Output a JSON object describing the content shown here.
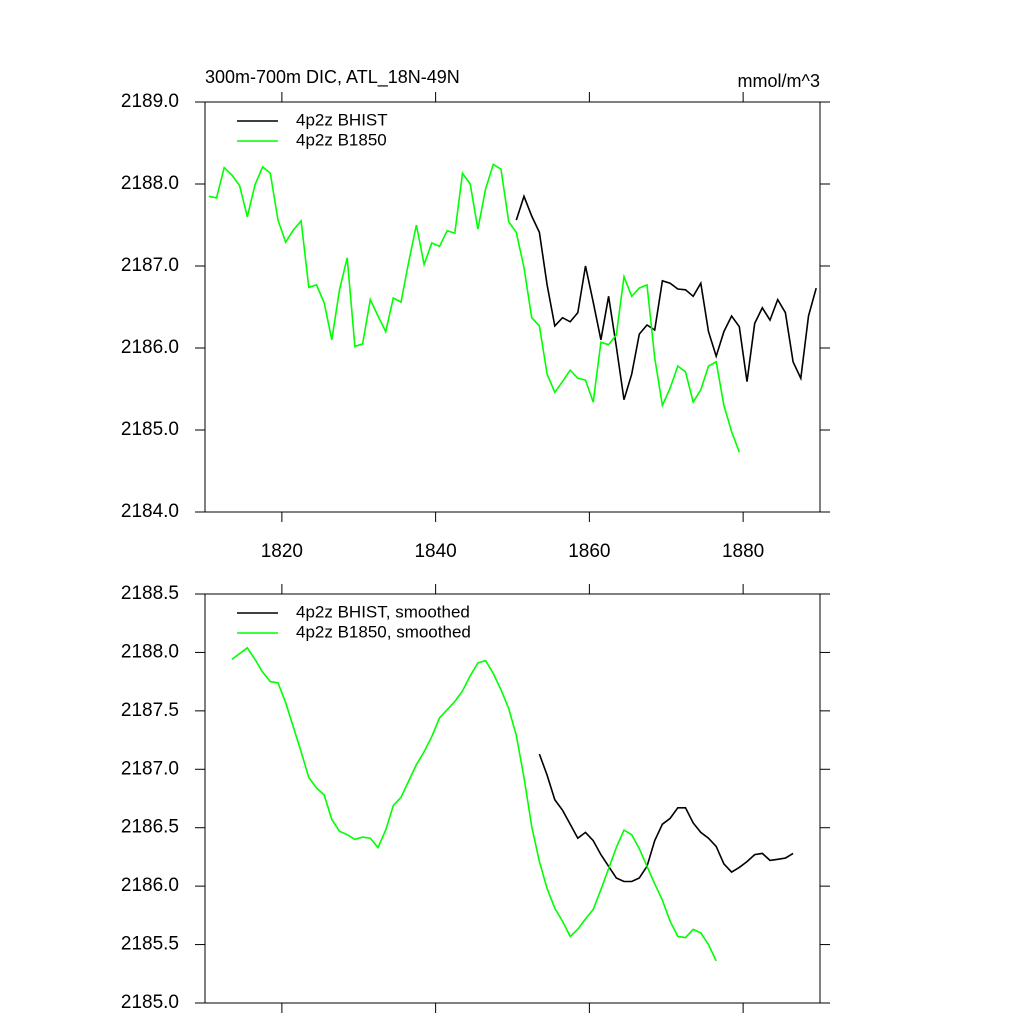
{
  "chart_data": [
    {
      "type": "line",
      "title": "300m-700m DIC, ATL_18N-49N",
      "units_label": "mmol/m^3",
      "xlim": [
        1810,
        1890
      ],
      "xticks": [
        1820,
        1840,
        1860,
        1880
      ],
      "xtick_labels": true,
      "ylim": [
        2184,
        2189
      ],
      "yticks": [
        {
          "value": 2184,
          "label": "2184.0"
        },
        {
          "value": 2185,
          "label": "2185.0"
        },
        {
          "value": 2186,
          "label": "2186.0"
        },
        {
          "value": 2187,
          "label": "2187.0"
        },
        {
          "value": 2188,
          "label": "2188.0"
        },
        {
          "value": 2189,
          "label": "2189.0"
        }
      ],
      "legend": "upper left",
      "series": [
        {
          "name": "4p2z BHIST",
          "color": "#000000",
          "x": [
            1850.5,
            1851.5,
            1852.5,
            1853.5,
            1854.5,
            1855.5,
            1856.5,
            1857.5,
            1858.5,
            1859.5,
            1860.5,
            1861.5,
            1862.5,
            1863.5,
            1864.5,
            1865.5,
            1866.5,
            1867.5,
            1868.5,
            1869.5,
            1870.5,
            1871.5,
            1872.5,
            1873.5,
            1874.5,
            1875.5,
            1876.5,
            1877.5,
            1878.5,
            1879.5,
            1880.5,
            1881.5,
            1882.5,
            1883.5,
            1884.5,
            1885.5,
            1886.5,
            1887.5,
            1888.5,
            1889.5
          ],
          "values": [
            2187.56,
            2187.85,
            2187.61,
            2187.41,
            2186.77,
            2186.27,
            2186.37,
            2186.32,
            2186.43,
            2187.0,
            2186.56,
            2186.1,
            2186.63,
            2186.02,
            2185.37,
            2185.68,
            2186.17,
            2186.28,
            2186.22,
            2186.82,
            2186.79,
            2186.72,
            2186.71,
            2186.63,
            2186.79,
            2186.2,
            2185.9,
            2186.2,
            2186.39,
            2186.26,
            2185.59,
            2186.3,
            2186.49,
            2186.34,
            2186.59,
            2186.43,
            2185.83,
            2185.63,
            2186.39,
            2186.73
          ]
        },
        {
          "name": "4p2z B1850",
          "color": "#00ff00",
          "x": [
            1810.5,
            1811.5,
            1812.5,
            1813.5,
            1814.5,
            1815.5,
            1816.5,
            1817.5,
            1818.5,
            1819.5,
            1820.5,
            1821.5,
            1822.5,
            1823.5,
            1824.5,
            1825.5,
            1826.5,
            1827.5,
            1828.5,
            1829.5,
            1830.5,
            1831.5,
            1832.5,
            1833.5,
            1834.5,
            1835.5,
            1836.5,
            1837.5,
            1838.5,
            1839.5,
            1840.5,
            1841.5,
            1842.5,
            1843.5,
            1844.5,
            1845.5,
            1846.5,
            1847.5,
            1848.5,
            1849.5,
            1850.5,
            1851.5,
            1852.5,
            1853.5,
            1854.5,
            1855.5,
            1856.5,
            1857.5,
            1858.5,
            1859.5,
            1860.5,
            1861.5,
            1862.5,
            1863.5,
            1864.5,
            1865.5,
            1866.5,
            1867.5,
            1868.5,
            1869.5,
            1870.5,
            1871.5,
            1872.5,
            1873.5,
            1874.5,
            1875.5,
            1876.5,
            1877.5,
            1878.5,
            1879.5
          ],
          "values": [
            2187.85,
            2187.83,
            2188.2,
            2188.11,
            2187.98,
            2187.6,
            2187.99,
            2188.21,
            2188.13,
            2187.56,
            2187.29,
            2187.44,
            2187.55,
            2186.74,
            2186.77,
            2186.55,
            2186.1,
            2186.71,
            2187.1,
            2186.02,
            2186.05,
            2186.59,
            2186.39,
            2186.2,
            2186.61,
            2186.56,
            2187.05,
            2187.5,
            2187.02,
            2187.28,
            2187.24,
            2187.43,
            2187.4,
            2188.13,
            2188.0,
            2187.45,
            2187.94,
            2188.24,
            2188.18,
            2187.54,
            2187.41,
            2186.98,
            2186.37,
            2186.27,
            2185.68,
            2185.46,
            2185.59,
            2185.73,
            2185.63,
            2185.61,
            2185.34,
            2186.07,
            2186.04,
            2186.16,
            2186.87,
            2186.63,
            2186.73,
            2186.77,
            2185.88,
            2185.3,
            2185.51,
            2185.78,
            2185.71,
            2185.34,
            2185.49,
            2185.78,
            2185.83,
            2185.3,
            2184.98,
            2184.73
          ]
        }
      ]
    },
    {
      "type": "line",
      "xlim": [
        1810,
        1890
      ],
      "xticks": [
        1820,
        1840,
        1860,
        1880
      ],
      "xtick_labels": false,
      "ylim": [
        2185,
        2188.5
      ],
      "yticks": [
        {
          "value": 2185,
          "label": "2185.0"
        },
        2185.5,
        {
          "value": 2186,
          "label": "2186.0"
        },
        2186.5,
        {
          "value": 2187,
          "label": "2187.0"
        },
        2187.5,
        {
          "value": 2188,
          "label": "2188.0"
        },
        2188.5
      ],
      "legend": "upper left",
      "series": [
        {
          "name": "4p2z BHIST, smoothed",
          "color": "#000000",
          "x": [
            1853.5,
            1854.5,
            1855.5,
            1856.5,
            1857.5,
            1858.5,
            1859.5,
            1860.5,
            1861.5,
            1862.5,
            1863.5,
            1864.5,
            1865.5,
            1866.5,
            1867.5,
            1868.5,
            1869.5,
            1870.5,
            1871.5,
            1872.5,
            1873.5,
            1874.5,
            1875.5,
            1876.5,
            1877.5,
            1878.5,
            1879.5,
            1880.5,
            1881.5,
            1882.5,
            1883.5,
            1884.5,
            1885.5,
            1886.5
          ],
          "values": [
            2187.13,
            2186.95,
            2186.74,
            2186.65,
            2186.53,
            2186.41,
            2186.46,
            2186.39,
            2186.27,
            2186.17,
            2186.07,
            2186.04,
            2186.04,
            2186.07,
            2186.17,
            2186.39,
            2186.53,
            2186.58,
            2186.67,
            2186.67,
            2186.54,
            2186.46,
            2186.41,
            2186.34,
            2186.19,
            2186.12,
            2186.16,
            2186.21,
            2186.27,
            2186.28,
            2186.22,
            2186.23,
            2186.24,
            2186.28
          ]
        },
        {
          "name": "4p2z B1850, smoothed",
          "color": "#00ff00",
          "x": [
            1813.5,
            1814.5,
            1815.5,
            1816.5,
            1817.5,
            1818.5,
            1819.5,
            1820.5,
            1821.5,
            1822.5,
            1823.5,
            1824.5,
            1825.5,
            1826.5,
            1827.5,
            1828.5,
            1829.5,
            1830.5,
            1831.5,
            1832.5,
            1833.5,
            1834.5,
            1835.5,
            1836.5,
            1837.5,
            1838.5,
            1839.5,
            1840.5,
            1841.5,
            1842.5,
            1843.5,
            1844.5,
            1845.5,
            1846.5,
            1847.5,
            1848.5,
            1849.5,
            1850.5,
            1851.5,
            1852.5,
            1853.5,
            1854.5,
            1855.5,
            1856.5,
            1857.5,
            1858.5,
            1859.5,
            1860.5,
            1861.5,
            1862.5,
            1863.5,
            1864.5,
            1865.5,
            1866.5,
            1867.5,
            1868.5,
            1869.5,
            1870.5,
            1871.5,
            1872.5,
            1873.5,
            1874.5,
            1875.5,
            1876.5
          ],
          "values": [
            2187.94,
            2187.99,
            2188.04,
            2187.94,
            2187.83,
            2187.75,
            2187.74,
            2187.57,
            2187.36,
            2187.15,
            2186.93,
            2186.84,
            2186.78,
            2186.57,
            2186.47,
            2186.44,
            2186.4,
            2186.42,
            2186.41,
            2186.33,
            2186.48,
            2186.69,
            2186.76,
            2186.9,
            2187.04,
            2187.15,
            2187.28,
            2187.44,
            2187.51,
            2187.58,
            2187.67,
            2187.8,
            2187.91,
            2187.93,
            2187.82,
            2187.68,
            2187.52,
            2187.29,
            2186.93,
            2186.51,
            2186.21,
            2185.98,
            2185.81,
            2185.7,
            2185.57,
            2185.63,
            2185.72,
            2185.8,
            2185.97,
            2186.15,
            2186.33,
            2186.48,
            2186.44,
            2186.32,
            2186.17,
            2186.02,
            2185.88,
            2185.7,
            2185.57,
            2185.56,
            2185.63,
            2185.6,
            2185.5,
            2185.36
          ]
        }
      ]
    }
  ]
}
